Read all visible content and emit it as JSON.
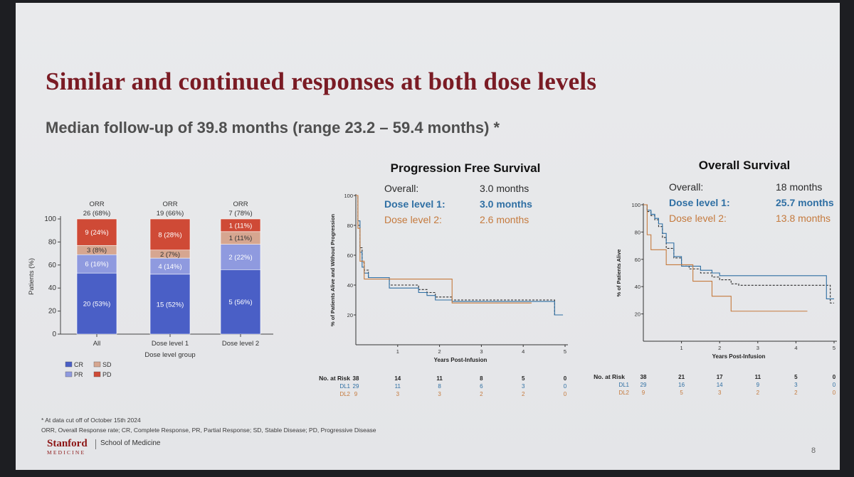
{
  "title": "Similar and continued responses at both dose levels",
  "subtitle": "Median follow-up of 39.8 months (range 23.2 – 59.4 months) *",
  "footnotes": [
    "* At data cut off of October 15th 2024",
    "ORR, Overall Response rate; CR, Complete Response, PR, Partial Response; SD, Stable Disease; PD, Progressive Disease"
  ],
  "logo": {
    "name": "Stanford",
    "sub": "MEDICINE",
    "school": "School of Medicine"
  },
  "page_number": "8",
  "colors": {
    "cr": "#4a5fc6",
    "pr": "#8f9adf",
    "sd": "#d6a690",
    "pd": "#cf4a36",
    "overall": "#2a2a2a",
    "dl1": "#2f6fa3",
    "dl2": "#c57a3d"
  },
  "chart_data": [
    {
      "type": "bar",
      "stacked": true,
      "categories": [
        "All",
        "Dose level 1",
        "Dose level 2"
      ],
      "xlabel": "Dose level group",
      "ylabel": "Patients (%)",
      "ylim": [
        0,
        100
      ],
      "yticks": [
        "0",
        "20",
        "40",
        "60",
        "80",
        "100"
      ],
      "orr_header": [
        "ORR",
        "ORR",
        "ORR"
      ],
      "orr_values": [
        "26 (68%)",
        "19 (66%)",
        "7 (78%)"
      ],
      "series": [
        {
          "name": "CR",
          "values": [
            53,
            52,
            56
          ],
          "labels": [
            "20 (53%)",
            "15 (52%)",
            "5 (56%)"
          ]
        },
        {
          "name": "PR",
          "values": [
            16,
            14,
            22
          ],
          "labels": [
            "6 (16%)",
            "4 (14%)",
            "2 (22%)"
          ]
        },
        {
          "name": "SD",
          "values": [
            8,
            7,
            11
          ],
          "labels": [
            "3 (8%)",
            "2 (7%)",
            "1 (11%)"
          ]
        },
        {
          "name": "PD",
          "values": [
            24,
            28,
            11
          ],
          "labels": [
            "9 (24%)",
            "8 (28%)",
            "1 (11%)"
          ]
        }
      ],
      "legend": [
        "CR",
        "SD",
        "PR",
        "PD"
      ]
    },
    {
      "type": "line",
      "title": "Progression Free Survival",
      "xlabel": "Years Post-Infusion",
      "ylabel": "% of Patients Alive and Without Progression",
      "xlim": [
        0,
        5
      ],
      "ylim": [
        0,
        100
      ],
      "xticks": [
        "1",
        "2",
        "3",
        "4",
        "5"
      ],
      "yticks": [
        "20",
        "40",
        "60",
        "80",
        "100"
      ],
      "medians": [
        {
          "label": "Overall:",
          "value": "3.0 months"
        },
        {
          "label": "Dose level 1:",
          "value": "3.0 months"
        },
        {
          "label": "Dose level 2:",
          "value": "2.6 months"
        }
      ],
      "series": [
        {
          "name": "Overall",
          "x": [
            0,
            0.05,
            0.1,
            0.15,
            0.2,
            0.3,
            0.5,
            0.8,
            0.8,
            1.0,
            1.5,
            1.5,
            1.7,
            1.9,
            2.3,
            2.3,
            3.0,
            4.0,
            4.75,
            4.75,
            4.95
          ],
          "y": [
            100,
            80,
            65,
            55,
            50,
            45,
            45,
            42,
            40,
            40,
            40,
            37,
            35,
            32,
            32,
            30,
            30,
            30,
            30,
            20,
            20
          ]
        },
        {
          "name": "DL1",
          "x": [
            0,
            0.05,
            0.1,
            0.15,
            0.2,
            0.3,
            0.5,
            0.8,
            1.0,
            1.5,
            1.5,
            1.7,
            1.9,
            2.3,
            2.3,
            3.0,
            4.75,
            4.75,
            4.95
          ],
          "y": [
            100,
            83,
            62,
            52,
            48,
            45,
            45,
            38,
            38,
            38,
            35,
            33,
            30,
            30,
            29,
            29,
            29,
            20,
            20
          ]
        },
        {
          "name": "DL2",
          "x": [
            0,
            0.05,
            0.1,
            0.2,
            0.2,
            1.0,
            2.0,
            2.3,
            2.3,
            4.0,
            4.2
          ],
          "y": [
            100,
            78,
            56,
            44,
            44,
            44,
            44,
            44,
            28,
            28,
            28
          ]
        }
      ],
      "risk_table": {
        "header": "No. at Risk",
        "rows": [
          {
            "name": "",
            "values": [
              "38",
              "14",
              "11",
              "8",
              "5",
              "0"
            ]
          },
          {
            "name": "DL1",
            "values": [
              "29",
              "11",
              "8",
              "6",
              "3",
              "0"
            ]
          },
          {
            "name": "DL2",
            "values": [
              "9",
              "3",
              "3",
              "2",
              "2",
              "0"
            ]
          }
        ]
      }
    },
    {
      "type": "line",
      "title": "Overall Survival",
      "xlabel": "Years Post-Infusion",
      "ylabel": "% of Patients Alive",
      "xlim": [
        0,
        5
      ],
      "ylim": [
        0,
        100
      ],
      "xticks": [
        "1",
        "2",
        "3",
        "4",
        "5"
      ],
      "yticks": [
        "20",
        "40",
        "60",
        "80",
        "100"
      ],
      "medians": [
        {
          "label": "Overall:",
          "value": "18 months"
        },
        {
          "label": "Dose level 1:",
          "value": "25.7 months"
        },
        {
          "label": "Dose level 2:",
          "value": "13.8 months"
        }
      ],
      "series": [
        {
          "name": "Overall",
          "x": [
            0,
            0.1,
            0.2,
            0.3,
            0.4,
            0.5,
            0.6,
            0.8,
            1.0,
            1.2,
            1.5,
            1.8,
            2.0,
            2.3,
            2.5,
            4.9,
            4.9,
            5.0
          ],
          "y": [
            100,
            95,
            92,
            89,
            84,
            76,
            68,
            61,
            55,
            53,
            50,
            47,
            45,
            42,
            41,
            41,
            28,
            28
          ]
        },
        {
          "name": "DL1",
          "x": [
            0,
            0.1,
            0.2,
            0.3,
            0.4,
            0.5,
            0.6,
            0.8,
            1.0,
            1.5,
            1.8,
            2.0,
            4.8,
            4.8,
            5.0
          ],
          "y": [
            100,
            96,
            93,
            90,
            86,
            79,
            72,
            62,
            55,
            52,
            50,
            48,
            48,
            31,
            31
          ]
        },
        {
          "name": "DL2",
          "x": [
            0,
            0.1,
            0.2,
            0.6,
            0.6,
            1.0,
            1.3,
            1.3,
            1.8,
            1.8,
            2.3,
            2.3,
            4.3
          ],
          "y": [
            100,
            78,
            67,
            67,
            56,
            56,
            56,
            44,
            44,
            33,
            33,
            22,
            22
          ]
        }
      ],
      "risk_table": {
        "header": "No. at Risk",
        "rows": [
          {
            "name": "",
            "values": [
              "38",
              "21",
              "17",
              "11",
              "5",
              "0"
            ]
          },
          {
            "name": "DL1",
            "values": [
              "29",
              "16",
              "14",
              "9",
              "3",
              "0"
            ]
          },
          {
            "name": "DL2",
            "values": [
              "9",
              "5",
              "3",
              "2",
              "2",
              "0"
            ]
          }
        ]
      }
    }
  ]
}
